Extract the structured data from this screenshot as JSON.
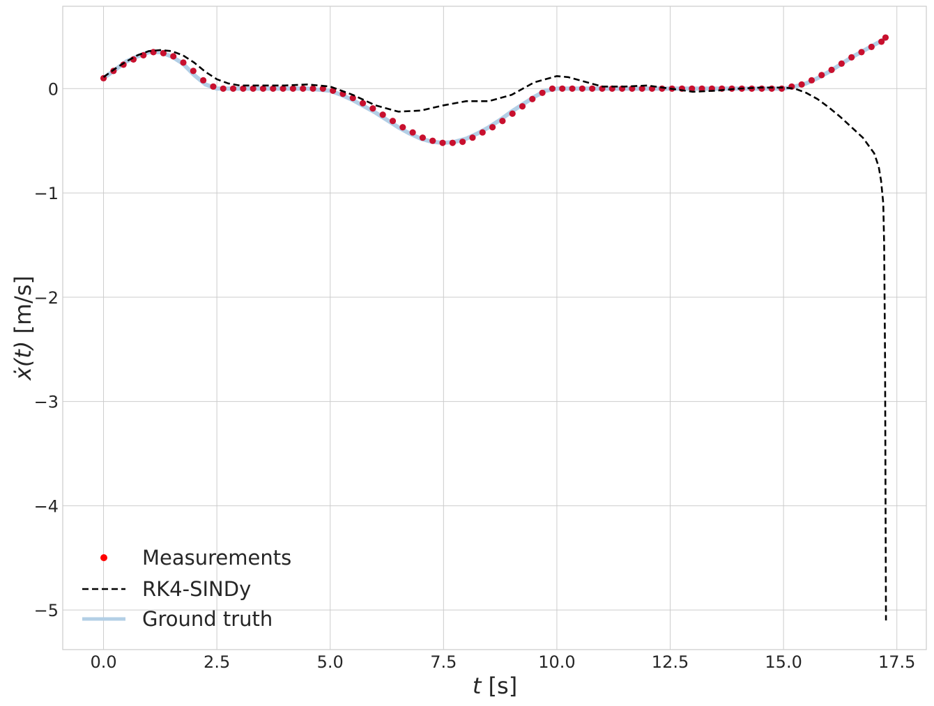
{
  "chart_data": {
    "type": "line",
    "title": "",
    "xlabel_var": "t",
    "xlabel_unit": " [s]",
    "ylabel_var": "ẋ(t)",
    "ylabel_unit": " [m/s]",
    "xlim": [
      -0.9,
      18.15
    ],
    "ylim": [
      -5.38,
      0.79
    ],
    "xticks": [
      0,
      2.5,
      5,
      7.5,
      10,
      12.5,
      15,
      17.5
    ],
    "xtick_labels": [
      "0.0",
      "2.5",
      "5.0",
      "7.5",
      "10.0",
      "12.5",
      "15.0",
      "17.5"
    ],
    "yticks": [
      0,
      -1,
      -2,
      -3,
      -4,
      -5
    ],
    "ytick_labels": [
      "0",
      "−1",
      "−2",
      "−3",
      "−4",
      "−5"
    ],
    "grid": true,
    "legend": "bottom-left",
    "colors": {
      "measurements": "#c8102e",
      "rk4_sindy": "#000000",
      "ground_truth": "#b3cfe6",
      "grid": "#cccccc",
      "frame": "#cccccc"
    },
    "series": [
      {
        "name": "Ground truth",
        "style": "solid",
        "x": [
          0,
          0.25,
          0.5,
          0.75,
          1.0,
          1.25,
          1.5,
          1.75,
          2.0,
          2.25,
          2.5,
          3.0,
          3.5,
          4.0,
          4.5,
          5.0,
          5.25,
          5.5,
          5.75,
          6.0,
          6.25,
          6.5,
          6.75,
          7.0,
          7.25,
          7.5,
          7.75,
          8.0,
          8.25,
          8.5,
          8.75,
          9.0,
          9.25,
          9.5,
          9.75,
          10.0,
          11.0,
          12.0,
          13.0,
          14.0,
          15.0,
          15.25,
          15.5,
          15.75,
          16.0,
          16.25,
          16.5,
          16.75,
          17.0,
          17.25
        ],
        "y": [
          0.1,
          0.18,
          0.26,
          0.31,
          0.35,
          0.35,
          0.31,
          0.24,
          0.13,
          0.04,
          0.0,
          0.0,
          0.0,
          0.0,
          0.0,
          -0.02,
          -0.06,
          -0.11,
          -0.17,
          -0.23,
          -0.3,
          -0.37,
          -0.43,
          -0.48,
          -0.51,
          -0.52,
          -0.51,
          -0.48,
          -0.43,
          -0.37,
          -0.3,
          -0.22,
          -0.15,
          -0.08,
          -0.02,
          0.0,
          0.0,
          0.0,
          0.0,
          0.0,
          0.0,
          0.02,
          0.05,
          0.1,
          0.16,
          0.23,
          0.3,
          0.36,
          0.42,
          0.48
        ]
      },
      {
        "name": "RK4-SINDy",
        "style": "dashed",
        "x": [
          0,
          0.25,
          0.5,
          0.75,
          1.0,
          1.25,
          1.5,
          1.75,
          2.0,
          2.25,
          2.5,
          2.75,
          3.0,
          3.5,
          4.0,
          4.5,
          5.0,
          5.5,
          6.0,
          6.5,
          7.0,
          7.5,
          8.0,
          8.5,
          9.0,
          9.5,
          10.0,
          10.25,
          10.5,
          11.0,
          11.5,
          12.0,
          12.5,
          13.0,
          13.5,
          14.0,
          14.5,
          15.0,
          15.25,
          15.5,
          15.75,
          16.0,
          16.25,
          16.5,
          16.75,
          17.0,
          17.1,
          17.15,
          17.2,
          17.22,
          17.24,
          17.25,
          17.26
        ],
        "y": [
          0.11,
          0.19,
          0.26,
          0.32,
          0.36,
          0.37,
          0.36,
          0.32,
          0.25,
          0.16,
          0.09,
          0.05,
          0.03,
          0.03,
          0.03,
          0.04,
          0.02,
          -0.06,
          -0.16,
          -0.22,
          -0.21,
          -0.16,
          -0.12,
          -0.12,
          -0.06,
          0.06,
          0.12,
          0.11,
          0.08,
          0.02,
          0.02,
          0.03,
          0.0,
          -0.03,
          -0.02,
          0.0,
          0.01,
          0.01,
          0.0,
          -0.04,
          -0.1,
          -0.18,
          -0.27,
          -0.37,
          -0.47,
          -0.62,
          -0.75,
          -0.88,
          -1.1,
          -1.5,
          -2.6,
          -4.0,
          -5.1
        ]
      },
      {
        "name": "Measurements",
        "style": "markers",
        "x": [
          0,
          0.22,
          0.44,
          0.66,
          0.88,
          1.1,
          1.32,
          1.54,
          1.76,
          1.98,
          2.2,
          2.42,
          2.64,
          2.86,
          3.08,
          3.3,
          3.52,
          3.74,
          3.96,
          4.18,
          4.4,
          4.62,
          4.84,
          5.06,
          5.28,
          5.5,
          5.72,
          5.94,
          6.16,
          6.38,
          6.6,
          6.82,
          7.04,
          7.26,
          7.48,
          7.7,
          7.92,
          8.14,
          8.36,
          8.58,
          8.8,
          9.02,
          9.24,
          9.46,
          9.68,
          9.9,
          10.12,
          10.34,
          10.56,
          10.78,
          11.0,
          11.22,
          11.44,
          11.66,
          11.88,
          12.1,
          12.32,
          12.54,
          12.76,
          12.98,
          13.2,
          13.42,
          13.64,
          13.86,
          14.08,
          14.3,
          14.52,
          14.74,
          14.96,
          15.18,
          15.4,
          15.62,
          15.84,
          16.06,
          16.28,
          16.5,
          16.72,
          16.94,
          17.16,
          17.25
        ],
        "y": [
          0.1,
          0.17,
          0.23,
          0.28,
          0.32,
          0.35,
          0.34,
          0.31,
          0.25,
          0.17,
          0.08,
          0.02,
          0.0,
          0.0,
          0.0,
          0.0,
          0.0,
          0.0,
          0.0,
          0.0,
          0.0,
          0.0,
          0.0,
          -0.02,
          -0.05,
          -0.09,
          -0.14,
          -0.19,
          -0.25,
          -0.31,
          -0.37,
          -0.42,
          -0.47,
          -0.5,
          -0.52,
          -0.52,
          -0.51,
          -0.47,
          -0.42,
          -0.37,
          -0.31,
          -0.24,
          -0.17,
          -0.1,
          -0.04,
          0.0,
          0.0,
          0.0,
          0.0,
          0.0,
          0.0,
          0.0,
          0.0,
          0.0,
          0.0,
          0.0,
          0.0,
          0.0,
          0.0,
          0.0,
          0.0,
          0.0,
          0.0,
          0.0,
          0.0,
          0.0,
          0.0,
          0.0,
          0.0,
          0.02,
          0.04,
          0.08,
          0.13,
          0.18,
          0.24,
          0.3,
          0.35,
          0.4,
          0.45,
          0.49
        ]
      }
    ],
    "legend_entries": [
      {
        "label": "Measurements",
        "kind": "marker"
      },
      {
        "label": "RK4-SINDy",
        "kind": "dashed"
      },
      {
        "label": "Ground truth",
        "kind": "solid"
      }
    ]
  }
}
